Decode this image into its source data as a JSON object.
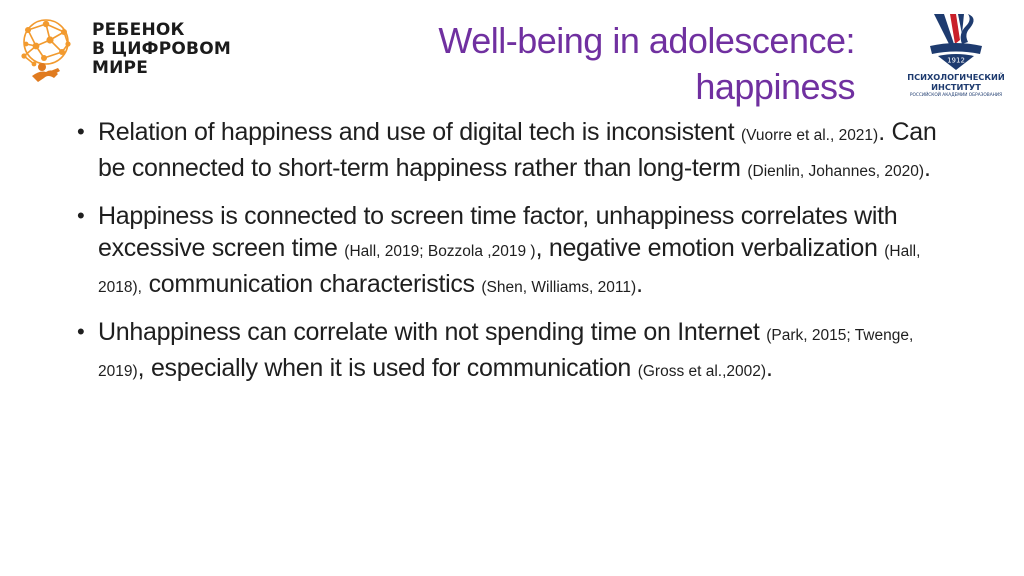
{
  "header": {
    "logo_left": {
      "line1": "РЕБЕНОК",
      "line2": "В ЦИФРОВОМ",
      "line3": "МИРЕ",
      "colors": {
        "network": "#f29a2e",
        "figure": "#e07b1f"
      }
    },
    "logo_right": {
      "year": "1912",
      "line1": "ПСИХОЛОГИЧЕСКИЙ",
      "line2": "ИНСТИТУТ",
      "line3": "РОССИЙСКОЙ АКАДЕМИИ ОБРАЗОВАНИЯ",
      "colors": {
        "blue": "#1e3b6f",
        "red": "#c9202a"
      }
    }
  },
  "title": {
    "line1": "Well-being in adolescence:",
    "line2": "happiness",
    "color": "#7030a0"
  },
  "bullets": [
    {
      "t1": "Relation of happiness and use of digital tech is inconsistent ",
      "c1": "(Vuorre et al., 2021)",
      "t2": ". Can be connected to short-term happiness rather than long-term ",
      "c2": "(Dienlin, Johannes, 2020)",
      "t3": "."
    },
    {
      "t1": "Happiness is connected to screen time factor, unhappiness correlates with excessive screen time ",
      "c1": "(Hall, 2019; Bozzola ,2019 )",
      "t2": ", negative emotion verbalization ",
      "c2": "(Hall, 2018),",
      "t3": " communication characteristics ",
      "c3": "(Shen, Williams, 2011)",
      "t4": "."
    },
    {
      "t1": "Unhappiness can correlate with not spending time on Internet ",
      "c1": "(Park, 2015; Twenge, 2019)",
      "t2": ", especially when it is used for communication ",
      "c2": "(Gross et al.,2002)",
      "t3": "."
    }
  ]
}
